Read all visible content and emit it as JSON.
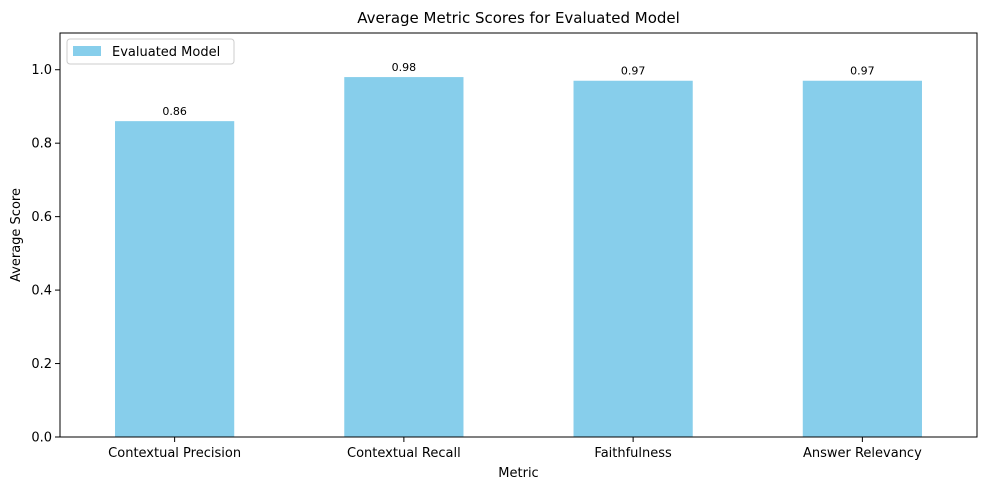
{
  "chart_data": {
    "type": "bar",
    "title": "Average Metric Scores for Evaluated Model",
    "xlabel": "Metric",
    "ylabel": "Average Score",
    "categories": [
      "Contextual Precision",
      "Contextual Recall",
      "Faithfulness",
      "Answer Relevancy"
    ],
    "series": [
      {
        "name": "Evaluated Model",
        "values": [
          0.86,
          0.98,
          0.97,
          0.97
        ],
        "color": "#87ceeb"
      }
    ],
    "data_labels": [
      "0.86",
      "0.98",
      "0.97",
      "0.97"
    ],
    "ylim": [
      0,
      1.1
    ],
    "yticks": [
      0.0,
      0.2,
      0.4,
      0.6,
      0.8,
      1.0
    ],
    "ytick_labels": [
      "0.0",
      "0.2",
      "0.4",
      "0.6",
      "0.8",
      "1.0"
    ],
    "grid": false,
    "legend_position": "top-left"
  }
}
